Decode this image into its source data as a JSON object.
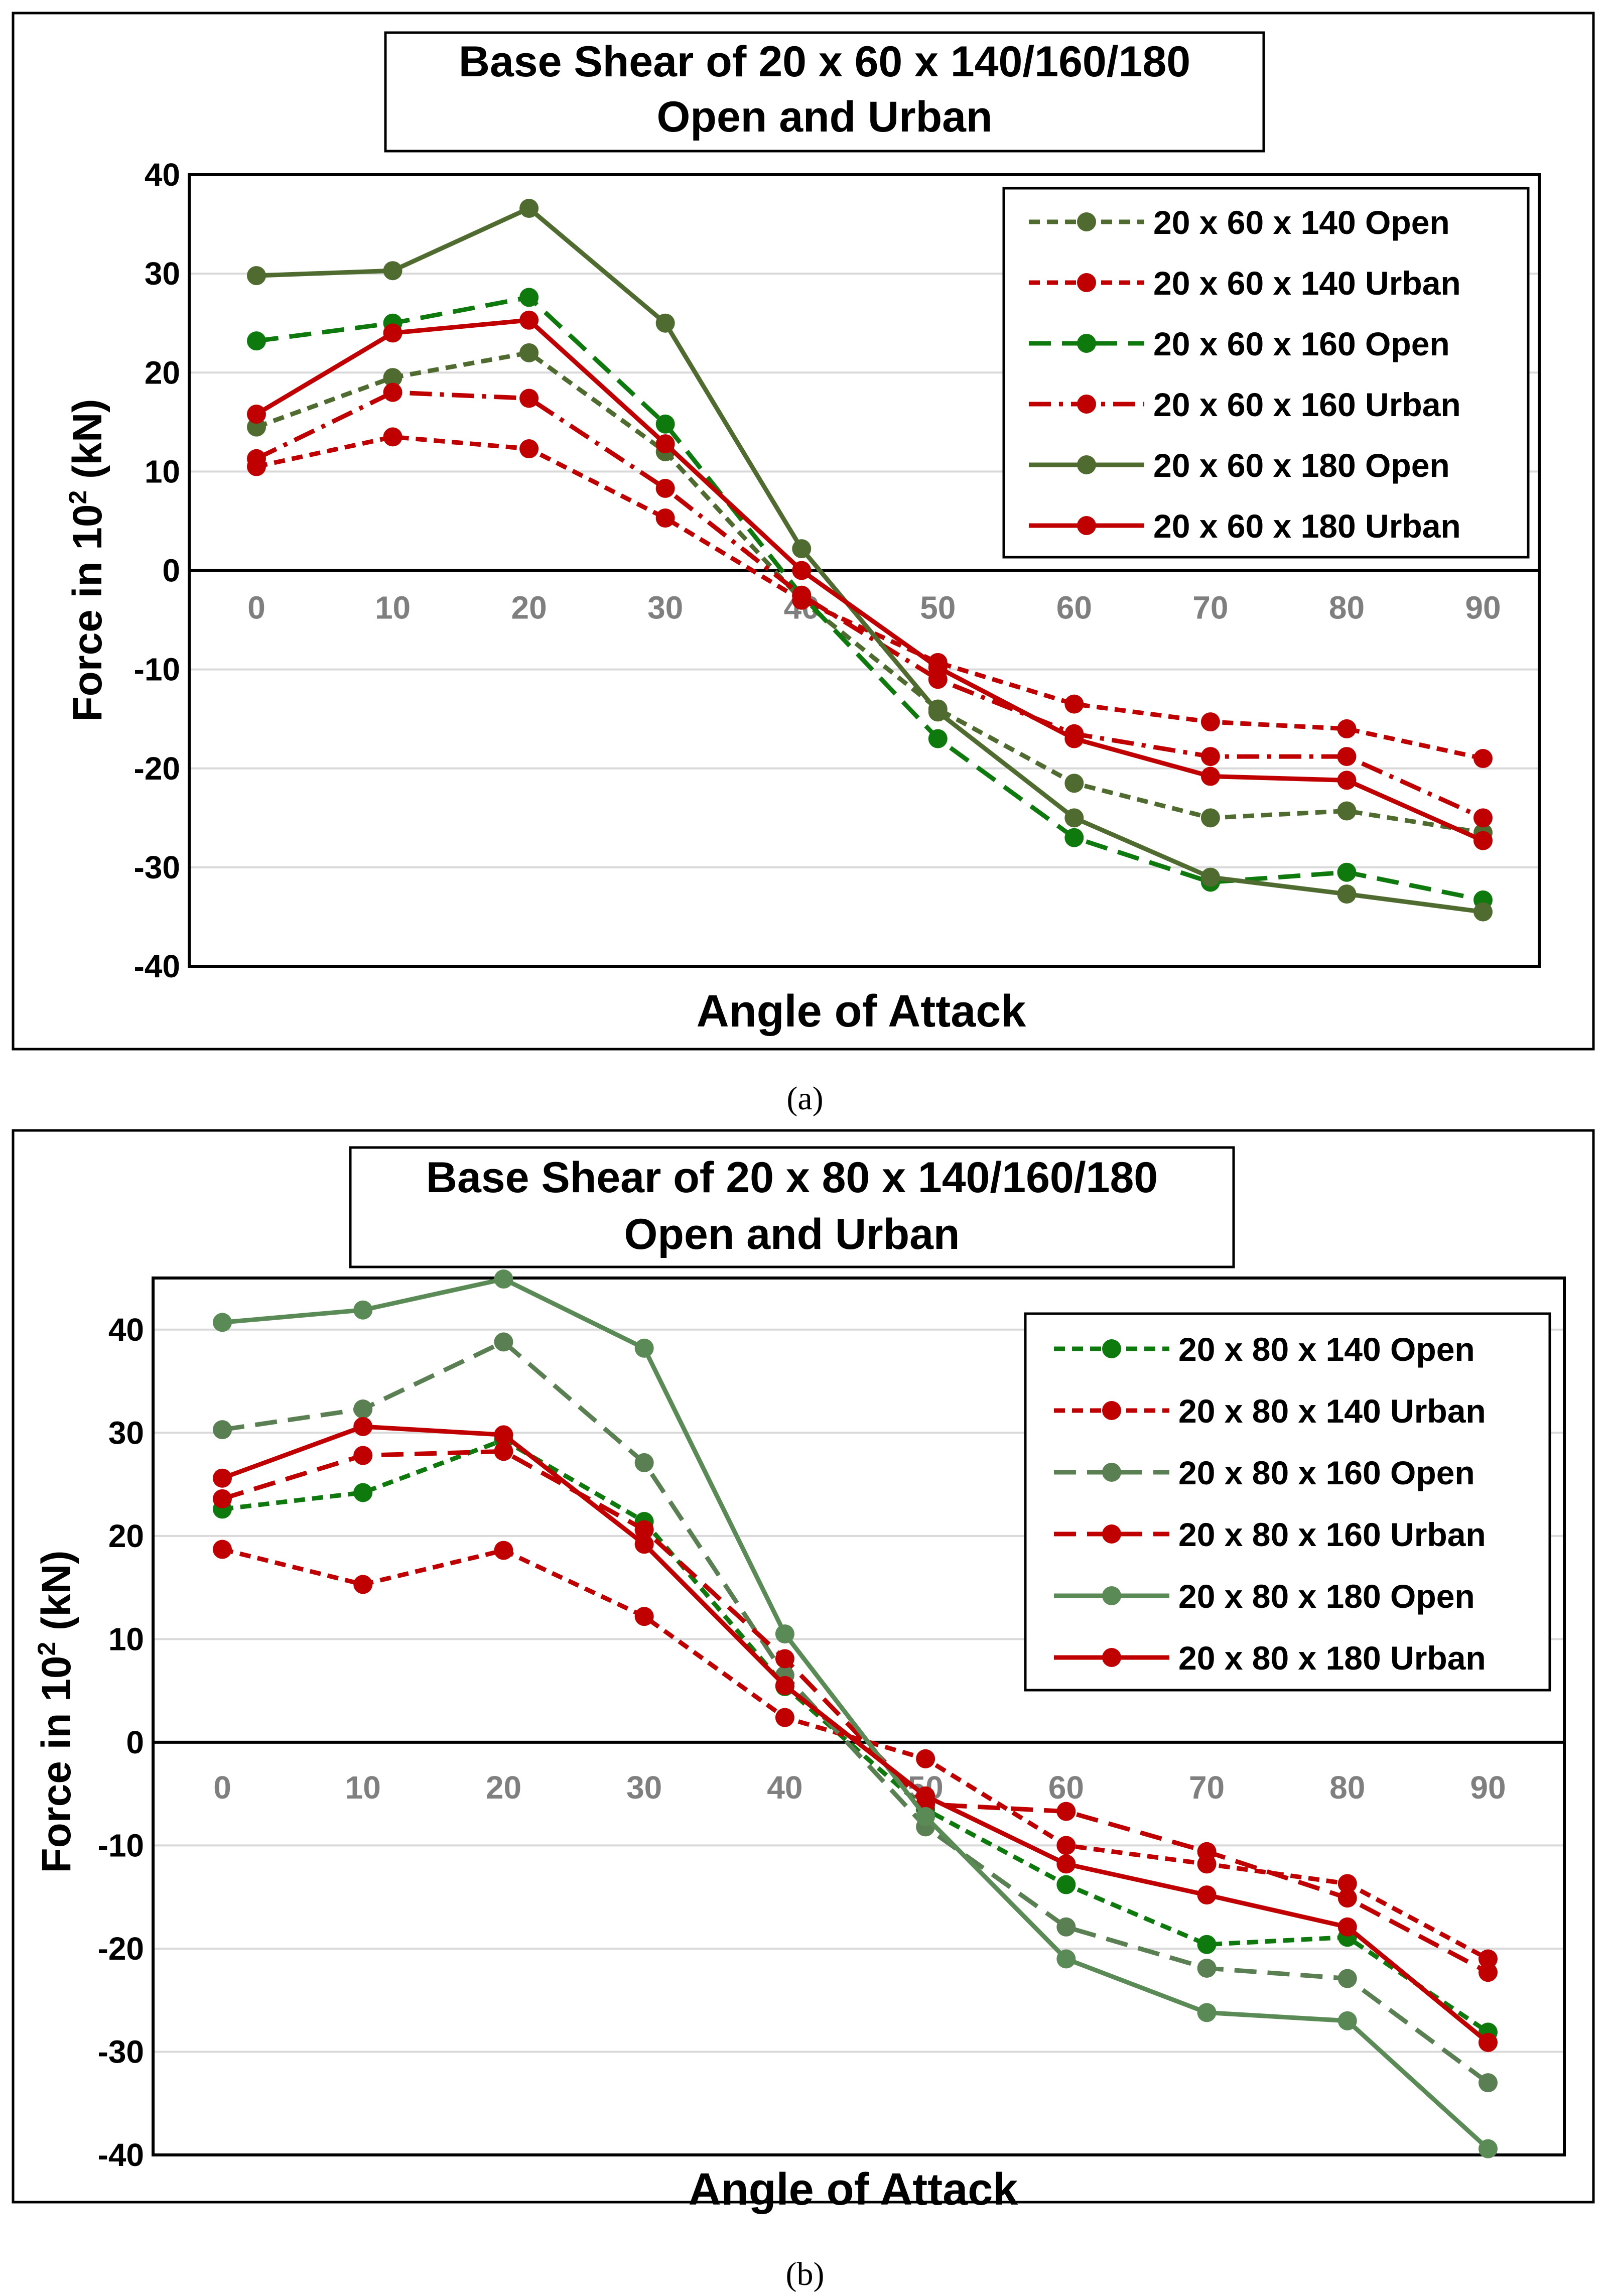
{
  "figure": {
    "caption_a": "(a)",
    "caption_b": "(b)"
  },
  "chart_data": [
    {
      "type": "line",
      "title_line1": "Base Shear of 20 x 60 x 140/160/180",
      "title_line2": "Open and Urban",
      "xlabel": "Angle of Attack",
      "ylabel_main": "Force in 10",
      "ylabel_sup": "2",
      "ylabel_unit": " (kN)",
      "ylim": [
        -40,
        40
      ],
      "yticks": [
        "-40",
        "-30",
        "-20",
        "-10",
        "0",
        "10",
        "20",
        "30",
        "40"
      ],
      "categories": [
        "0",
        "10",
        "20",
        "30",
        "40",
        "50",
        "60",
        "70",
        "80",
        "90"
      ],
      "x": [
        0,
        10,
        20,
        30,
        40,
        50,
        60,
        70,
        80,
        90
      ],
      "legend_position": "top-right",
      "series": [
        {
          "name": "20 x 60 x 140 Open",
          "color": "#4f6b2f",
          "dash": "short",
          "values": [
            14.5,
            19.5,
            22,
            12,
            -3,
            -14,
            -21.5,
            -25,
            -24.3,
            -26.5
          ]
        },
        {
          "name": "20 x 60 x 140 Urban",
          "color": "#c00000",
          "dash": "short",
          "values": [
            10.5,
            13.5,
            12.3,
            5.3,
            -3,
            -9.3,
            -13.5,
            -15.3,
            -16,
            -19
          ]
        },
        {
          "name": "20 x 60 x 160 Open",
          "color": "#0e7a0e",
          "dash": "long",
          "values": [
            23.2,
            25,
            27.6,
            14.8,
            -2.5,
            -17,
            -27,
            -31.5,
            -30.5,
            -33.3
          ]
        },
        {
          "name": "20 x 60 x 160 Urban",
          "color": "#c00000",
          "dash": "longdot",
          "values": [
            11.3,
            18,
            17.4,
            8.3,
            -2.5,
            -11,
            -16.5,
            -18.8,
            -18.8,
            -25
          ]
        },
        {
          "name": "20 x 60 x 180 Open",
          "color": "#4f6b2f",
          "dash": "solid",
          "values": [
            29.8,
            30.3,
            36.6,
            25,
            2.2,
            -14.3,
            -25,
            -31,
            -32.7,
            -34.5
          ]
        },
        {
          "name": "20 x 60 x 180 Urban",
          "color": "#c00000",
          "dash": "solid",
          "values": [
            15.8,
            24,
            25.3,
            12.8,
            0,
            -9.8,
            -17,
            -20.8,
            -21.2,
            -27.3
          ]
        }
      ]
    },
    {
      "type": "line",
      "title_line1": "Base Shear of 20 x 80 x 140/160/180",
      "title_line2": "Open and Urban",
      "xlabel": "Angle of Attack",
      "ylabel_main": "Force in 10",
      "ylabel_sup": "2",
      "ylabel_unit": " (kN)",
      "ylim": [
        -40,
        45
      ],
      "yticks": [
        "-40",
        "-30",
        "-20",
        "-10",
        "0",
        "10",
        "20",
        "30",
        "40"
      ],
      "categories": [
        "0",
        "10",
        "20",
        "30",
        "40",
        "50",
        "60",
        "70",
        "80",
        "90"
      ],
      "x": [
        0,
        10,
        20,
        30,
        40,
        50,
        60,
        70,
        80,
        90
      ],
      "legend_position": "top-right",
      "series": [
        {
          "name": "20 x 80 x 140 Open",
          "color": "#0e7a0e",
          "dash": "short",
          "values": [
            22.6,
            24.2,
            29.3,
            21.4,
            5.4,
            -6.5,
            -13.8,
            -19.6,
            -18.9,
            -28.1
          ]
        },
        {
          "name": "20 x 80 x 140 Urban",
          "color": "#c00000",
          "dash": "short",
          "values": [
            18.7,
            15.3,
            18.6,
            12.2,
            2.4,
            -1.6,
            -10,
            -11.8,
            -13.7,
            -21
          ]
        },
        {
          "name": "20 x 80 x 160 Open",
          "color": "#5a7f53",
          "dash": "long",
          "values": [
            30.3,
            32.3,
            38.8,
            27.1,
            6.5,
            -8.2,
            -17.9,
            -21.9,
            -22.9,
            -33
          ]
        },
        {
          "name": "20 x 80 x 160 Urban",
          "color": "#c00000",
          "dash": "long",
          "values": [
            23.6,
            27.8,
            28.2,
            20.6,
            8.1,
            -6,
            -6.7,
            -10.6,
            -15.1,
            -22.3
          ]
        },
        {
          "name": "20 x 80 x 180 Open",
          "color": "#5a8a55",
          "dash": "solid",
          "values": [
            40.7,
            41.9,
            44.9,
            38.2,
            10.5,
            -7.2,
            -21,
            -26.2,
            -27,
            -39.4
          ]
        },
        {
          "name": "20 x 80 x 180 Urban",
          "color": "#c00000",
          "dash": "solid",
          "values": [
            25.6,
            30.6,
            29.8,
            19.2,
            5.5,
            -5.2,
            -11.8,
            -14.8,
            -17.9,
            -29.1
          ]
        }
      ]
    }
  ]
}
